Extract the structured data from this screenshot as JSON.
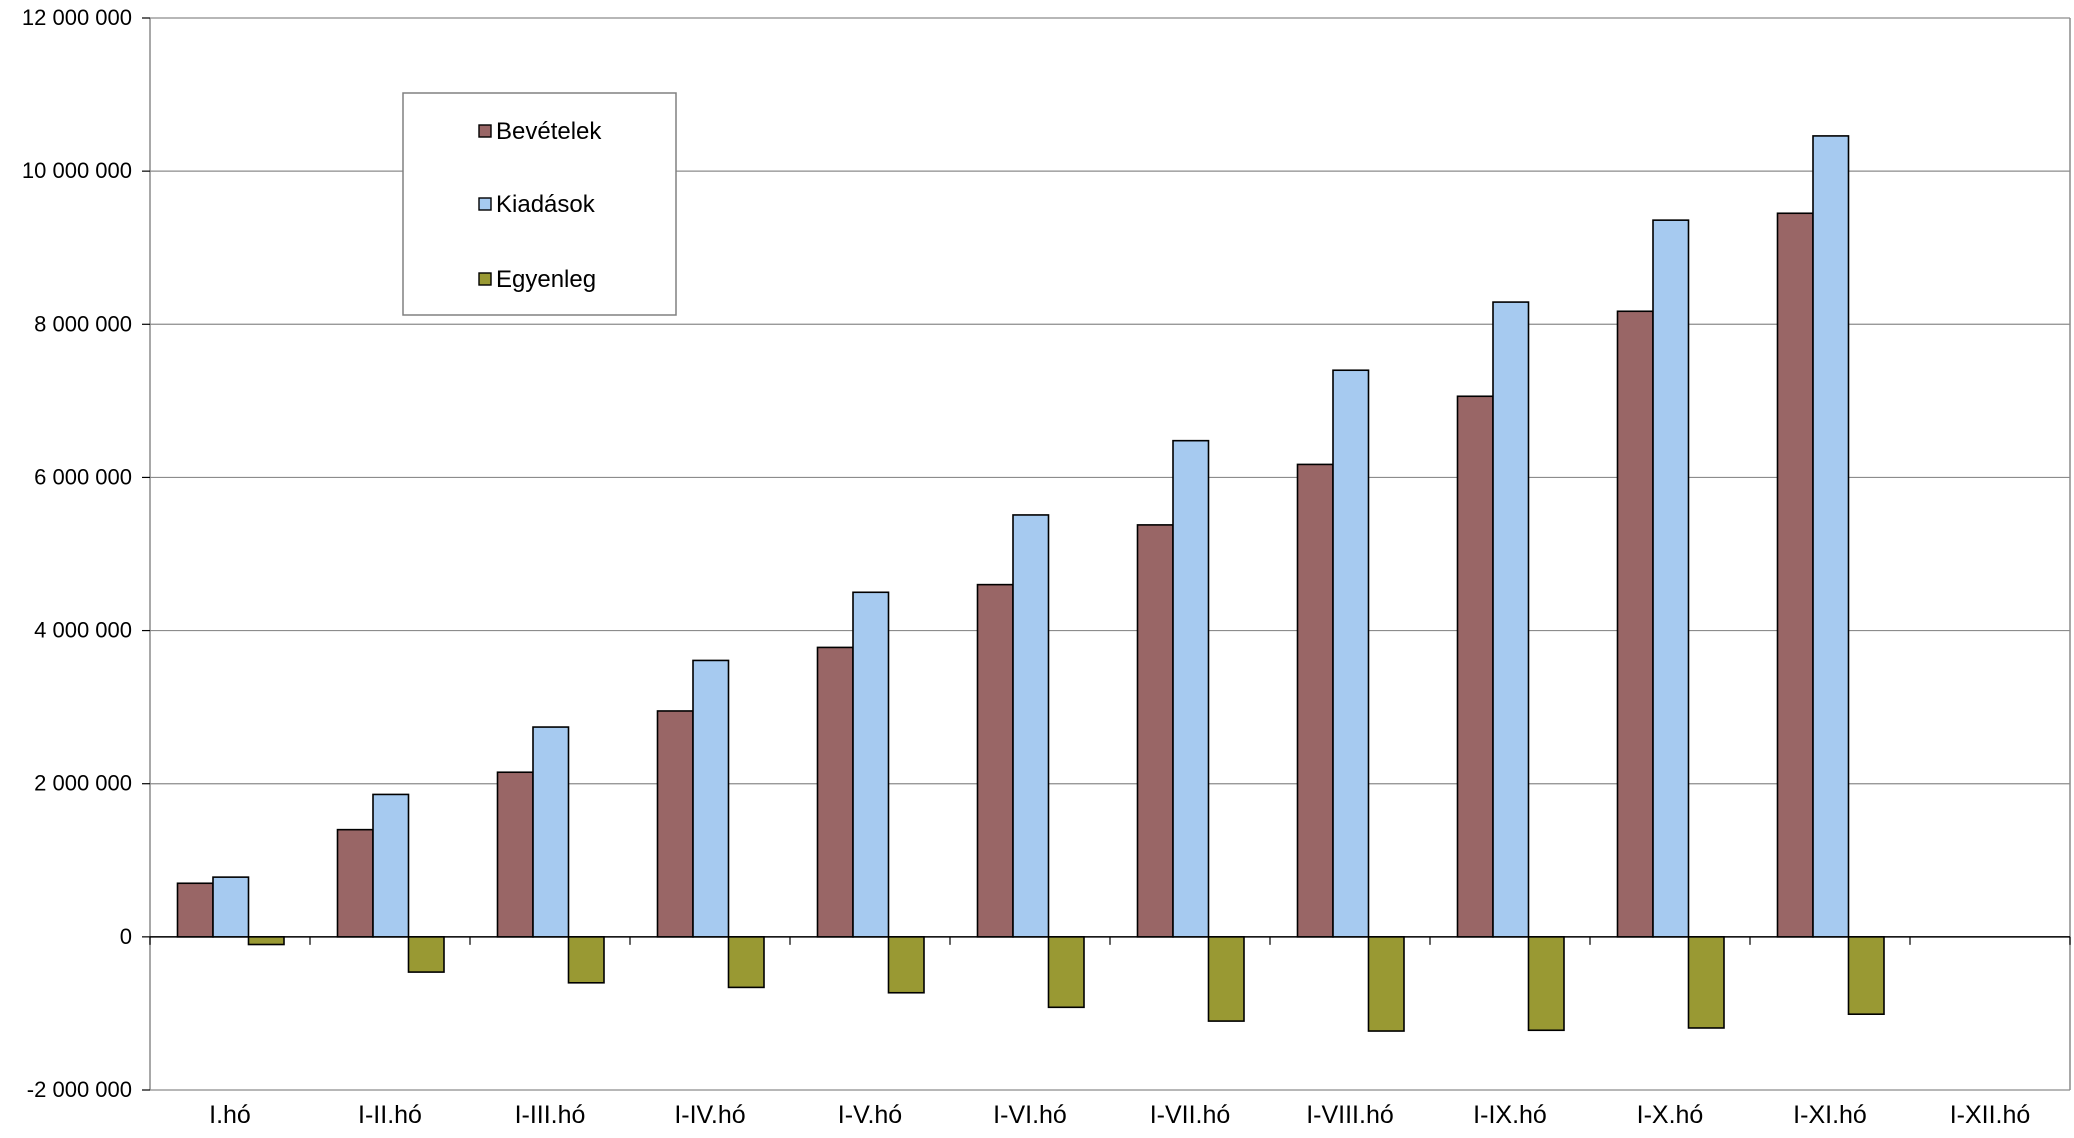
{
  "chart_data": {
    "type": "bar",
    "categories": [
      "I.hó",
      "I-II.hó",
      "I-III.hó",
      "I-IV.hó",
      "I-V.hó",
      "I-VI.hó",
      "I-VII.hó",
      "I-VIII.hó",
      "I-IX.hó",
      "I-X.hó",
      "I-XI.hó",
      "I-XII.hó"
    ],
    "series": [
      {
        "name": "Bevételek",
        "color": "#996666",
        "values": [
          700000,
          1400000,
          2150000,
          2950000,
          3780000,
          4600000,
          5380000,
          6170000,
          7060000,
          8170000,
          9450000,
          null
        ]
      },
      {
        "name": "Kiadások",
        "color": "#a6caf0",
        "values": [
          780000,
          1860000,
          2740000,
          3610000,
          4500000,
          5510000,
          6480000,
          7400000,
          8290000,
          9360000,
          10460000,
          null
        ]
      },
      {
        "name": "Egyenleg",
        "color": "#999933",
        "values": [
          -100000,
          -460000,
          -600000,
          -660000,
          -730000,
          -920000,
          -1100000,
          -1230000,
          -1220000,
          -1190000,
          -1010000,
          null
        ]
      }
    ],
    "yticks": [
      -2000000,
      0,
      2000000,
      4000000,
      6000000,
      8000000,
      10000000,
      12000000
    ],
    "ytick_labels": [
      "-2 000 000",
      "0",
      "2 000 000",
      "4 000 000",
      "6 000 000",
      "8 000 000",
      "10 000 000",
      "12 000 000"
    ],
    "ylim": [
      -2000000,
      12000000
    ],
    "grid": true,
    "legend_position": "top-left"
  }
}
